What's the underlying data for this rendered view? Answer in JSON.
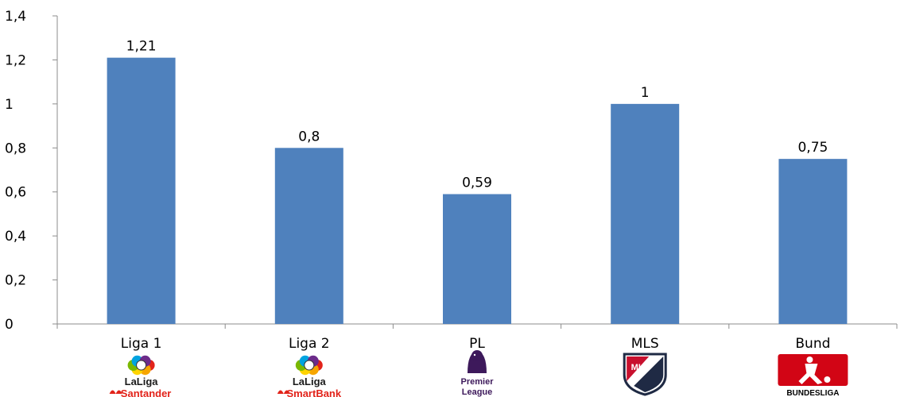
{
  "chart_data": {
    "type": "bar",
    "title": "",
    "xlabel": "",
    "ylabel": "",
    "categories": [
      "Liga 1",
      "Liga 2",
      "PL",
      "MLS",
      "Bund"
    ],
    "values": [
      1.21,
      0.8,
      0.59,
      1,
      0.75
    ],
    "data_labels": [
      "1,21",
      "0,8",
      "0,59",
      "1",
      "0,75"
    ],
    "ylim": [
      0,
      1.4
    ],
    "yticks": [
      0,
      0.2,
      0.4,
      0.6,
      0.8,
      1,
      1.2,
      1.4
    ],
    "ytick_labels": [
      "0",
      "0,2",
      "0,4",
      "0,6",
      "0,8",
      "1",
      "1,2",
      "1,4"
    ],
    "grid": false,
    "legend": "none",
    "bar_color": "#4f81bd"
  },
  "logos": [
    {
      "name": "laliga-santander-logo",
      "line1": "LaLiga",
      "line2": "Santander",
      "line2_color": "#e2231a"
    },
    {
      "name": "laliga-smartbank-logo",
      "line1": "LaLiga",
      "line2": "SmartBank",
      "line2_color": "#e2231a"
    },
    {
      "name": "premier-league-logo",
      "line1": "Premier",
      "line2": "League",
      "line2_color": "#3d195b"
    },
    {
      "name": "mls-logo",
      "line1": "MLS",
      "line2": "",
      "line2_color": "#c8102e"
    },
    {
      "name": "bundesliga-logo",
      "line1": "BUNDESLIGA",
      "line2": "",
      "line2_color": "#000000"
    }
  ]
}
